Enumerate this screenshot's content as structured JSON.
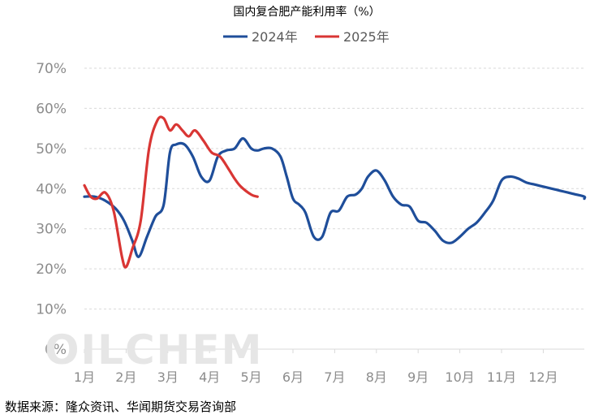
{
  "chart_data": {
    "type": "line",
    "title": "国内复合肥产能利用率（%）",
    "source": "数据来源：隆众资讯、华闻期货交易咨询部",
    "watermark": "OILCHEM",
    "xlabel": "",
    "ylabel": "",
    "x_ticks": [
      "1月",
      "2月",
      "3月",
      "4月",
      "5月",
      "6月",
      "7月",
      "8月",
      "9月",
      "10月",
      "11月",
      "12月"
    ],
    "y_ticks": [
      "0%",
      "10%",
      "20%",
      "30%",
      "40%",
      "50%",
      "60%",
      "70%"
    ],
    "ylim": [
      0,
      70
    ],
    "xlim": [
      1,
      13.2
    ],
    "grid": true,
    "legend_position": "top-center",
    "series": [
      {
        "name": "2024年",
        "color": "#1f4e9a",
        "x": [
          1.0,
          1.25,
          1.5,
          1.75,
          1.95,
          2.15,
          2.3,
          2.5,
          2.7,
          2.9,
          3.05,
          3.2,
          3.4,
          3.6,
          3.8,
          4.0,
          4.2,
          4.4,
          4.6,
          4.8,
          5.0,
          5.15,
          5.3,
          5.5,
          5.7,
          5.85,
          6.0,
          6.15,
          6.3,
          6.5,
          6.7,
          6.9,
          7.1,
          7.3,
          7.5,
          7.65,
          7.8,
          8.0,
          8.2,
          8.4,
          8.6,
          8.8,
          9.0,
          9.2,
          9.4,
          9.6,
          9.8,
          10.0,
          10.2,
          10.4,
          10.6,
          10.8,
          11.0,
          11.2,
          11.4,
          11.6,
          11.8,
          12.0,
          12.2,
          12.4,
          12.6,
          12.8,
          13.0,
          13.2
        ],
        "y": [
          38,
          38,
          37,
          35,
          32,
          27,
          23,
          28,
          33,
          36,
          49,
          51,
          51,
          48,
          43,
          42,
          48,
          49.5,
          50,
          52.5,
          50,
          49.5,
          50,
          50,
          48,
          43,
          37.5,
          36,
          34,
          28,
          28,
          34,
          34.5,
          38,
          38.5,
          40,
          43,
          44.5,
          42,
          38,
          36,
          35.5,
          32,
          31.5,
          29.5,
          27,
          26.5,
          28,
          30,
          31.5,
          34,
          37,
          42,
          43,
          42.5,
          41.5,
          41,
          40.5,
          40,
          39.5,
          39,
          38.5,
          38,
          37.5
        ]
      },
      {
        "name": "2025年",
        "color": "#d93634",
        "x": [
          1.0,
          1.15,
          1.3,
          1.5,
          1.7,
          1.9,
          2.0,
          2.15,
          2.35,
          2.55,
          2.75,
          2.9,
          3.05,
          3.2,
          3.35,
          3.5,
          3.65,
          3.85,
          4.05,
          4.25,
          4.45,
          4.6,
          4.75,
          5.0,
          5.15
        ],
        "y": [
          40.8,
          38,
          37.5,
          39,
          34.5,
          23,
          20.5,
          25,
          32,
          50,
          57,
          57.5,
          54.5,
          56,
          54.5,
          53,
          54.5,
          52,
          49,
          48,
          45,
          42.5,
          40.5,
          38.5,
          38
        ]
      }
    ]
  }
}
